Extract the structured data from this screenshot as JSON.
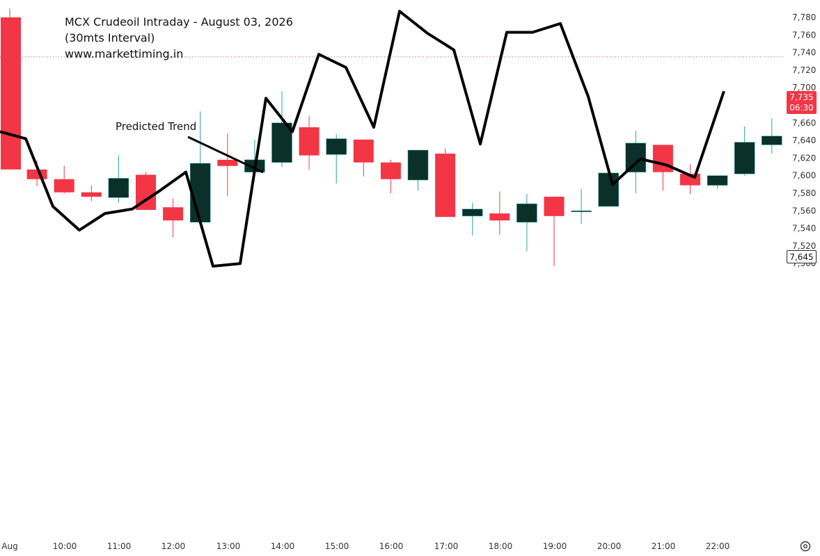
{
  "title": {
    "line1": "MCX Crudeoil Intraday - August 03, 2026",
    "line2": "(30mts Interval)",
    "line3": "www.markettiming.in"
  },
  "annotation": "Predicted Trend",
  "price_badge": {
    "value": "7,735",
    "time": "06:30",
    "color": "#f23645"
  },
  "last_badge": {
    "value": "7,645"
  },
  "colors": {
    "up": "#0b302a",
    "up_wick": "#26a69a",
    "down": "#f23645",
    "trend": "#000000"
  },
  "icons": {
    "settings": "gear-icon"
  },
  "chart_data": {
    "type": "candlestick",
    "y_ticks": [
      "7,500",
      "7,520",
      "7,540",
      "7,560",
      "7,580",
      "7,600",
      "7,620",
      "7,640",
      "7,660",
      "7,680",
      "7,700",
      "7,720",
      "7,740",
      "7,760",
      "7,780"
    ],
    "x_ticks": [
      "Aug",
      "10:00",
      "11:00",
      "12:00",
      "13:00",
      "14:00",
      "15:00",
      "16:00",
      "17:00",
      "18:00",
      "19:00",
      "20:00",
      "21:00",
      "22:00"
    ],
    "ylim": [
      7490,
      7790
    ],
    "candles": [
      {
        "time": "09:00",
        "open": 7780,
        "high": 7790,
        "low": 7607,
        "close": 7607
      },
      {
        "time": "09:30",
        "open": 7607,
        "high": 7617,
        "low": 7588,
        "close": 7596
      },
      {
        "time": "10:00",
        "open": 7596,
        "high": 7611,
        "low": 7580,
        "close": 7581
      },
      {
        "time": "10:30",
        "open": 7581,
        "high": 7589,
        "low": 7571,
        "close": 7576
      },
      {
        "time": "11:00",
        "open": 7575,
        "high": 7623,
        "low": 7569,
        "close": 7597
      },
      {
        "time": "11:30",
        "open": 7601,
        "high": 7604,
        "low": 7561,
        "close": 7561
      },
      {
        "time": "12:00",
        "open": 7564,
        "high": 7574,
        "low": 7530,
        "close": 7549
      },
      {
        "time": "12:30",
        "open": 7547,
        "high": 7673,
        "low": 7547,
        "close": 7614
      },
      {
        "time": "13:00",
        "open": 7618,
        "high": 7648,
        "low": 7577,
        "close": 7611
      },
      {
        "time": "13:30",
        "open": 7604,
        "high": 7641,
        "low": 7604,
        "close": 7618
      },
      {
        "time": "14:00",
        "open": 7615,
        "high": 7696,
        "low": 7610,
        "close": 7660
      },
      {
        "time": "14:30",
        "open": 7655,
        "high": 7668,
        "low": 7607,
        "close": 7623
      },
      {
        "time": "15:00",
        "open": 7624,
        "high": 7647,
        "low": 7591,
        "close": 7642
      },
      {
        "time": "15:30",
        "open": 7641,
        "high": 7641,
        "low": 7599,
        "close": 7615
      },
      {
        "time": "16:00",
        "open": 7615,
        "high": 7618,
        "low": 7580,
        "close": 7596
      },
      {
        "time": "16:30",
        "open": 7595,
        "high": 7629,
        "low": 7583,
        "close": 7629
      },
      {
        "time": "17:00",
        "open": 7625,
        "high": 7631,
        "low": 7553,
        "close": 7553
      },
      {
        "time": "17:30",
        "open": 7554,
        "high": 7569,
        "low": 7532,
        "close": 7562
      },
      {
        "time": "18:00",
        "open": 7557,
        "high": 7582,
        "low": 7533,
        "close": 7549
      },
      {
        "time": "18:30",
        "open": 7547,
        "high": 7579,
        "low": 7514,
        "close": 7568
      },
      {
        "time": "19:00",
        "open": 7576,
        "high": 7576,
        "low": 7497,
        "close": 7554
      },
      {
        "time": "19:30",
        "open": 7560,
        "high": 7585,
        "low": 7545,
        "close": 7560
      },
      {
        "time": "20:00",
        "open": 7565,
        "high": 7603,
        "low": 7565,
        "close": 7603
      },
      {
        "time": "20:30",
        "open": 7604,
        "high": 7651,
        "low": 7580,
        "close": 7637
      },
      {
        "time": "21:00",
        "open": 7635,
        "high": 7635,
        "low": 7583,
        "close": 7604
      },
      {
        "time": "21:30",
        "open": 7602,
        "high": 7613,
        "low": 7579,
        "close": 7589
      },
      {
        "time": "22:00",
        "open": 7589,
        "high": 7600,
        "low": 7585,
        "close": 7600
      },
      {
        "time": "22:30",
        "open": 7602,
        "high": 7656,
        "low": 7600,
        "close": 7638
      },
      {
        "time": "23:00",
        "open": 7635,
        "high": 7665,
        "low": 7625,
        "close": 7645
      }
    ],
    "trend": [
      {
        "time": "08:30",
        "y": 7650
      },
      {
        "time": "09:00",
        "y": 7642
      },
      {
        "time": "09:30",
        "y": 7565
      },
      {
        "time": "10:00",
        "y": 7538
      },
      {
        "time": "10:30",
        "y": 7557
      },
      {
        "time": "11:00",
        "y": 7562
      },
      {
        "time": "11:30",
        "y": 7582
      },
      {
        "time": "12:00",
        "y": 7604
      },
      {
        "time": "12:30",
        "y": 7497
      },
      {
        "time": "13:00",
        "y": 7500
      },
      {
        "time": "13:30",
        "y": 7688
      },
      {
        "time": "14:00",
        "y": 7650
      },
      {
        "time": "14:30",
        "y": 7738
      },
      {
        "time": "15:00",
        "y": 7723
      },
      {
        "time": "15:30",
        "y": 7655
      },
      {
        "time": "16:00",
        "y": 7787
      },
      {
        "time": "16:30",
        "y": 7762
      },
      {
        "time": "17:00",
        "y": 7743
      },
      {
        "time": "17:30",
        "y": 7636
      },
      {
        "time": "18:00",
        "y": 7763
      },
      {
        "time": "18:30",
        "y": 7763
      },
      {
        "time": "19:00",
        "y": 7773
      },
      {
        "time": "19:30",
        "y": 7690
      },
      {
        "time": "20:00",
        "y": 7590
      },
      {
        "time": "20:30",
        "y": 7619
      },
      {
        "time": "21:00",
        "y": 7612
      },
      {
        "time": "21:30",
        "y": 7598
      },
      {
        "time": "22:00",
        "y": 7696
      }
    ]
  }
}
